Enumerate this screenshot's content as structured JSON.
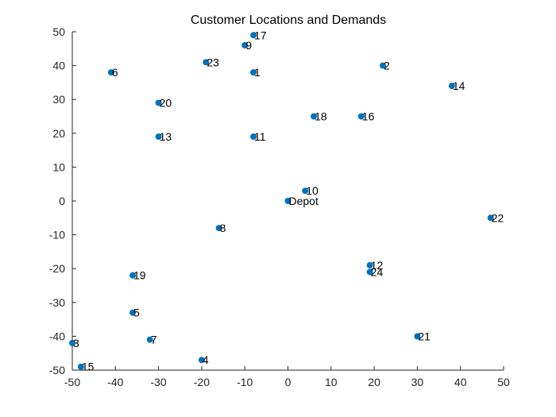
{
  "chart_data": {
    "type": "scatter",
    "title": "Customer Locations and Demands",
    "xlabel": "",
    "ylabel": "",
    "xlim": [
      -50,
      50
    ],
    "ylim": [
      -50,
      50
    ],
    "xticks": [
      -50,
      -40,
      -30,
      -20,
      -10,
      0,
      10,
      20,
      30,
      40,
      50
    ],
    "yticks": [
      -50,
      -40,
      -30,
      -20,
      -10,
      0,
      10,
      20,
      30,
      40,
      50
    ],
    "grid": false,
    "marker_color": "#0072BD",
    "points": [
      {
        "x": -8,
        "y": 38,
        "label": "1"
      },
      {
        "x": 22,
        "y": 40,
        "label": "2"
      },
      {
        "x": -50,
        "y": -42,
        "label": "3"
      },
      {
        "x": -20,
        "y": -47,
        "label": "4"
      },
      {
        "x": -36,
        "y": -33,
        "label": "5"
      },
      {
        "x": -41,
        "y": 38,
        "label": "6"
      },
      {
        "x": -32,
        "y": -41,
        "label": "7"
      },
      {
        "x": -16,
        "y": -8,
        "label": "8"
      },
      {
        "x": -10,
        "y": 46,
        "label": "9"
      },
      {
        "x": 4,
        "y": 3,
        "label": "10"
      },
      {
        "x": -8,
        "y": 19,
        "label": "11"
      },
      {
        "x": 19,
        "y": -19,
        "label": "12"
      },
      {
        "x": -30,
        "y": 19,
        "label": "13"
      },
      {
        "x": 38,
        "y": 34,
        "label": "14"
      },
      {
        "x": -48,
        "y": -49,
        "label": "15"
      },
      {
        "x": 17,
        "y": 25,
        "label": "16"
      },
      {
        "x": -8,
        "y": 49,
        "label": "17"
      },
      {
        "x": 6,
        "y": 25,
        "label": "18"
      },
      {
        "x": -36,
        "y": -22,
        "label": "19"
      },
      {
        "x": -30,
        "y": 29,
        "label": "20"
      },
      {
        "x": 30,
        "y": -40,
        "label": "21"
      },
      {
        "x": 47,
        "y": -5,
        "label": "22"
      },
      {
        "x": -19,
        "y": 41,
        "label": "23"
      },
      {
        "x": 19,
        "y": -21,
        "label": "24"
      },
      {
        "x": 0,
        "y": 0,
        "label": "Depot"
      }
    ]
  }
}
